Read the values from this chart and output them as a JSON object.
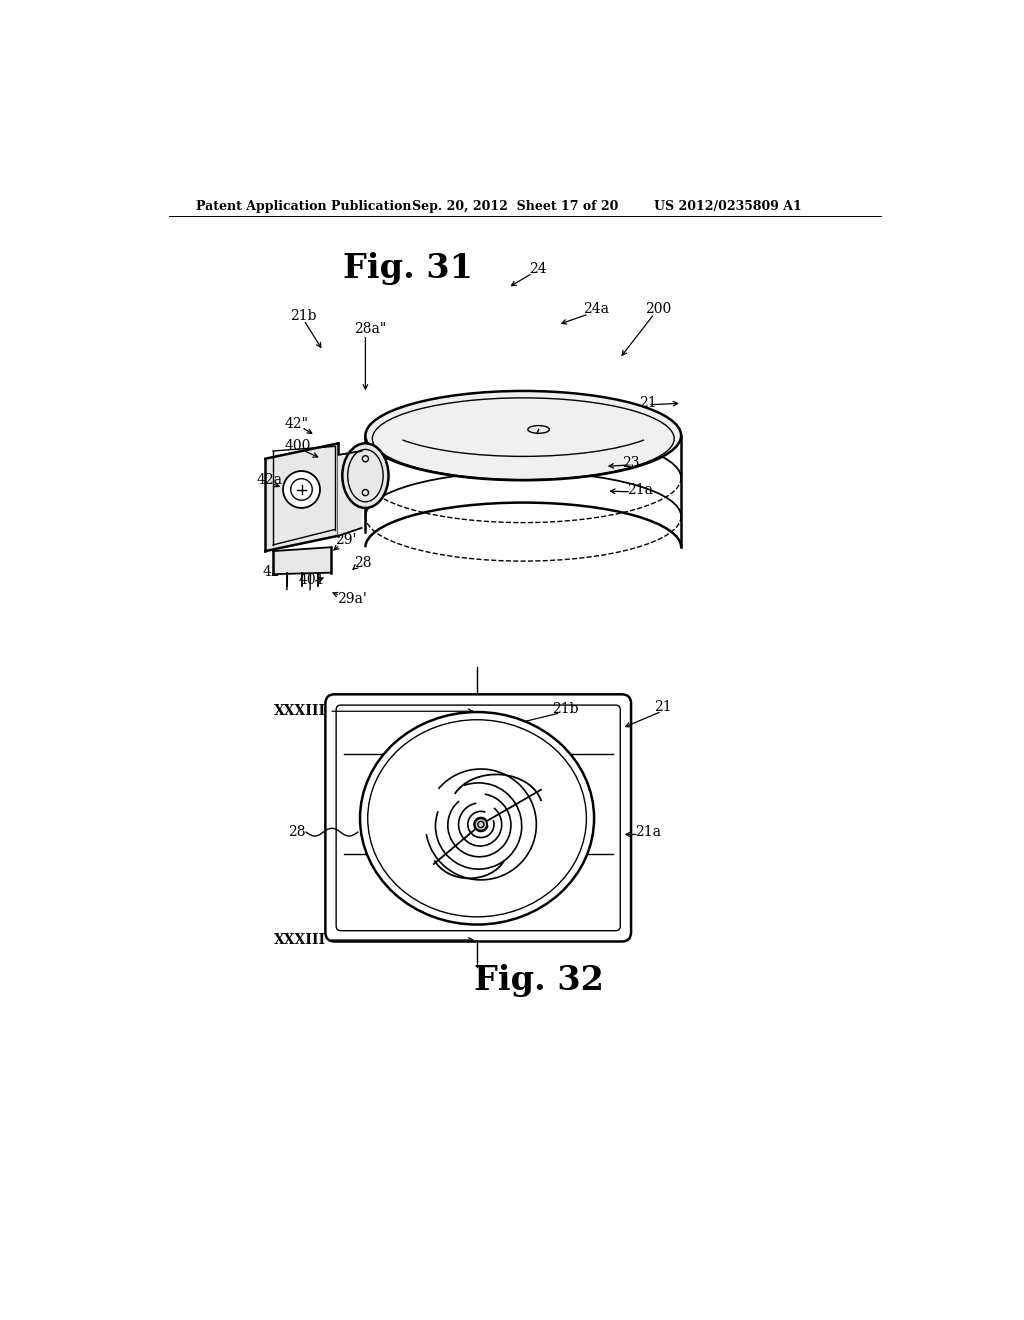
{
  "background_color": "#ffffff",
  "header_text": "Patent Application Publication",
  "header_date": "Sep. 20, 2012  Sheet 17 of 20",
  "header_patent": "US 2012/0235809 A1",
  "fig31_title": "Fig. 31",
  "fig32_title": "Fig. 32",
  "text_color": "#000000",
  "line_color": "#000000",
  "lw_main": 1.8,
  "lw_thin": 1.0,
  "lw_med": 1.3
}
